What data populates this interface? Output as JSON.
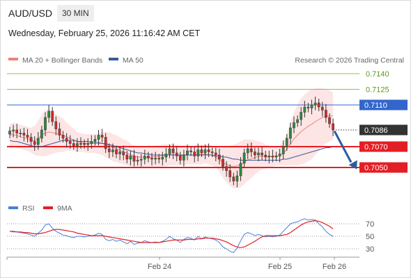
{
  "header": {
    "symbol": "AUD/USD",
    "timeframe": "30 MIN",
    "datetime": "Wednesday, February 25, 2026 11:16:42 AM CET",
    "copyright": "Research © 2026 Trading Central"
  },
  "colors": {
    "candle_up": "#2e8b3d",
    "candle_down": "#d42b2b",
    "bollinger_fill": "#fde2e2",
    "ma20": "#f08080",
    "ma50": "#3a5a9a",
    "resistance": "#8bc34a",
    "pivot": "#3366cc",
    "support": "#e31e24",
    "current": "#333333",
    "arrow": "#2d5c9e",
    "rsi": "#4a7fd8",
    "rsi_ma": "#e31e24"
  },
  "chart_data": [
    {
      "type": "candlestick",
      "legend": [
        {
          "label": "MA 20 + Bollinger Bands",
          "color": "#f08080"
        },
        {
          "label": "MA 50",
          "color": "#3a5a9a"
        }
      ],
      "price_levels": [
        {
          "value": 0.714,
          "label": "0.7140",
          "kind": "resistance"
        },
        {
          "value": 0.7125,
          "label": "0.7125",
          "kind": "resistance"
        },
        {
          "value": 0.711,
          "label": "0.7110",
          "kind": "pivot"
        },
        {
          "value": 0.7086,
          "label": "0.7086",
          "kind": "current"
        },
        {
          "value": 0.707,
          "label": "0.7070",
          "kind": "support"
        },
        {
          "value": 0.705,
          "label": "0.7050",
          "kind": "support"
        }
      ],
      "projection": {
        "from": 0.7085,
        "to": 0.7051,
        "direction": "down"
      },
      "x_ticks": [
        "Feb 24",
        "Feb 25",
        "Feb 26"
      ],
      "closes": [
        0.7085,
        0.7086,
        0.7083,
        0.7083,
        0.7081,
        0.7079,
        0.7075,
        0.7072,
        0.7078,
        0.7086,
        0.7098,
        0.7104,
        0.7094,
        0.7087,
        0.7081,
        0.7078,
        0.7075,
        0.7073,
        0.7071,
        0.7073,
        0.7073,
        0.7072,
        0.7073,
        0.7075,
        0.7077,
        0.7081,
        0.7079,
        0.7068,
        0.7065,
        0.7067,
        0.7063,
        0.7065,
        0.7062,
        0.7058,
        0.7061,
        0.7056,
        0.7057,
        0.7058,
        0.7061,
        0.7059,
        0.7058,
        0.7059,
        0.7058,
        0.706,
        0.7063,
        0.7068,
        0.7064,
        0.7061,
        0.7057,
        0.7062,
        0.7066,
        0.7065,
        0.7061,
        0.7067,
        0.7064,
        0.7067,
        0.7065,
        0.7064,
        0.7062,
        0.7058,
        0.7051,
        0.7047,
        0.7041,
        0.7037,
        0.7042,
        0.7054,
        0.7064,
        0.7068,
        0.7065,
        0.7062,
        0.7064,
        0.7062,
        0.706,
        0.7061,
        0.706,
        0.7061,
        0.7063,
        0.707,
        0.7078,
        0.7088,
        0.7093,
        0.7096,
        0.7103,
        0.7108,
        0.7107,
        0.711,
        0.7112,
        0.7108,
        0.7105,
        0.7098,
        0.7092,
        0.7086
      ],
      "bollinger_upper": [
        0.7092,
        0.7093,
        0.7092,
        0.7091,
        0.709,
        0.7089,
        0.7088,
        0.709,
        0.7095,
        0.7101,
        0.7105,
        0.7106,
        0.7104,
        0.7101,
        0.7099,
        0.7097,
        0.7093,
        0.709,
        0.7087,
        0.7084,
        0.7083,
        0.7082,
        0.7082,
        0.7082,
        0.7082,
        0.7083,
        0.7084,
        0.7084,
        0.7084,
        0.7082,
        0.7081,
        0.7079,
        0.7077,
        0.7076,
        0.7073,
        0.7071,
        0.707,
        0.707,
        0.707,
        0.707,
        0.707,
        0.7071,
        0.7071,
        0.7072,
        0.7072,
        0.7073,
        0.7072,
        0.7072,
        0.7071,
        0.7071,
        0.7071,
        0.7071,
        0.7071,
        0.7072,
        0.7072,
        0.7072,
        0.7072,
        0.7071,
        0.707,
        0.7069,
        0.7069,
        0.707,
        0.7071,
        0.7072,
        0.7073,
        0.7075,
        0.7077,
        0.7077,
        0.7077,
        0.7076,
        0.7075,
        0.7074,
        0.7072,
        0.7071,
        0.707,
        0.707,
        0.7071,
        0.7075,
        0.7083,
        0.7093,
        0.7103,
        0.711,
        0.7116,
        0.712,
        0.7123,
        0.7125,
        0.7126,
        0.7126,
        0.7126,
        0.7125,
        0.7124,
        0.7122
      ],
      "bollinger_lower": [
        0.707,
        0.707,
        0.7069,
        0.7068,
        0.7067,
        0.7066,
        0.7064,
        0.7062,
        0.7061,
        0.7061,
        0.7061,
        0.7062,
        0.7063,
        0.7064,
        0.7065,
        0.7065,
        0.7066,
        0.7066,
        0.7066,
        0.7065,
        0.7065,
        0.7065,
        0.7064,
        0.7064,
        0.7064,
        0.7063,
        0.7062,
        0.706,
        0.7058,
        0.7056,
        0.7055,
        0.7054,
        0.7053,
        0.7052,
        0.7051,
        0.7051,
        0.705,
        0.705,
        0.705,
        0.705,
        0.705,
        0.705,
        0.705,
        0.7051,
        0.7051,
        0.7052,
        0.7052,
        0.7052,
        0.7052,
        0.7052,
        0.7053,
        0.7053,
        0.7053,
        0.7053,
        0.7053,
        0.7054,
        0.7053,
        0.7052,
        0.705,
        0.7046,
        0.704,
        0.7036,
        0.7032,
        0.703,
        0.703,
        0.7031,
        0.7034,
        0.7037,
        0.704,
        0.7043,
        0.7046,
        0.7048,
        0.7049,
        0.705,
        0.7051,
        0.7052,
        0.7052,
        0.7052,
        0.7052,
        0.7052,
        0.7052,
        0.7052,
        0.7053,
        0.7054,
        0.7056,
        0.7058,
        0.7062,
        0.7066,
        0.707,
        0.7073,
        0.7075,
        0.7077
      ],
      "ma50": [
        0.7076,
        0.7075,
        0.7075,
        0.7074,
        0.7073,
        0.7072,
        0.7071,
        0.707,
        0.707,
        0.707,
        0.7071,
        0.7072,
        0.7073,
        0.7074,
        0.7075,
        0.7076,
        0.7076,
        0.7076,
        0.7076,
        0.7075,
        0.7075,
        0.7075,
        0.7075,
        0.7074,
        0.7074,
        0.7074,
        0.7073,
        0.7073,
        0.7072,
        0.7071,
        0.707,
        0.7069,
        0.7068,
        0.7067,
        0.7066,
        0.7065,
        0.7064,
        0.7064,
        0.7063,
        0.7063,
        0.7062,
        0.7062,
        0.7062,
        0.7062,
        0.7062,
        0.7062,
        0.7062,
        0.7062,
        0.7062,
        0.7062,
        0.7062,
        0.7062,
        0.7062,
        0.7062,
        0.7062,
        0.7062,
        0.7062,
        0.7062,
        0.7061,
        0.7061,
        0.706,
        0.706,
        0.7059,
        0.7058,
        0.7058,
        0.7057,
        0.7057,
        0.7057,
        0.7057,
        0.7057,
        0.7057,
        0.7057,
        0.7057,
        0.7057,
        0.7057,
        0.7057,
        0.7057,
        0.7058,
        0.7058,
        0.7059,
        0.706,
        0.7061,
        0.7062,
        0.7063,
        0.7064,
        0.7065,
        0.7066,
        0.7067,
        0.7068,
        0.7069,
        0.7069,
        0.707
      ]
    },
    {
      "type": "line",
      "legend": [
        {
          "label": "RSI",
          "color": "#4a7fd8"
        },
        {
          "label": "9MA",
          "color": "#e31e24"
        }
      ],
      "y_ticks": [
        "70",
        "50",
        "30"
      ],
      "ylim": [
        20,
        80
      ],
      "rsi": [
        58,
        57,
        57,
        56,
        55,
        54,
        52,
        50,
        55,
        60,
        68,
        70,
        63,
        58,
        55,
        52,
        51,
        49,
        48,
        50,
        50,
        49,
        50,
        51,
        52,
        55,
        53,
        45,
        43,
        45,
        42,
        44,
        41,
        38,
        42,
        37,
        39,
        40,
        43,
        41,
        40,
        41,
        40,
        42,
        45,
        50,
        46,
        44,
        40,
        45,
        48,
        47,
        44,
        50,
        46,
        49,
        47,
        46,
        44,
        40,
        33,
        30,
        26,
        24,
        31,
        43,
        53,
        56,
        54,
        51,
        53,
        51,
        49,
        50,
        49,
        50,
        52,
        58,
        64,
        70,
        72,
        73,
        76,
        78,
        76,
        77,
        76,
        70,
        65,
        58,
        53,
        50
      ],
      "ma9": [
        58,
        58,
        57,
        57,
        56,
        56,
        55,
        54,
        54,
        55,
        56,
        58,
        60,
        61,
        61,
        60,
        59,
        58,
        57,
        55,
        54,
        53,
        52,
        51,
        51,
        51,
        51,
        50,
        49,
        48,
        47,
        46,
        45,
        44,
        43,
        42,
        41,
        40,
        40,
        40,
        40,
        40,
        40,
        41,
        42,
        43,
        44,
        44,
        44,
        44,
        45,
        45,
        45,
        46,
        46,
        47,
        47,
        47,
        46,
        45,
        43,
        41,
        38,
        35,
        33,
        32,
        33,
        36,
        39,
        42,
        46,
        49,
        51,
        51,
        51,
        51,
        51,
        52,
        53,
        56,
        60,
        64,
        68,
        71,
        73,
        74,
        75,
        74,
        72,
        69,
        66,
        62
      ]
    }
  ]
}
